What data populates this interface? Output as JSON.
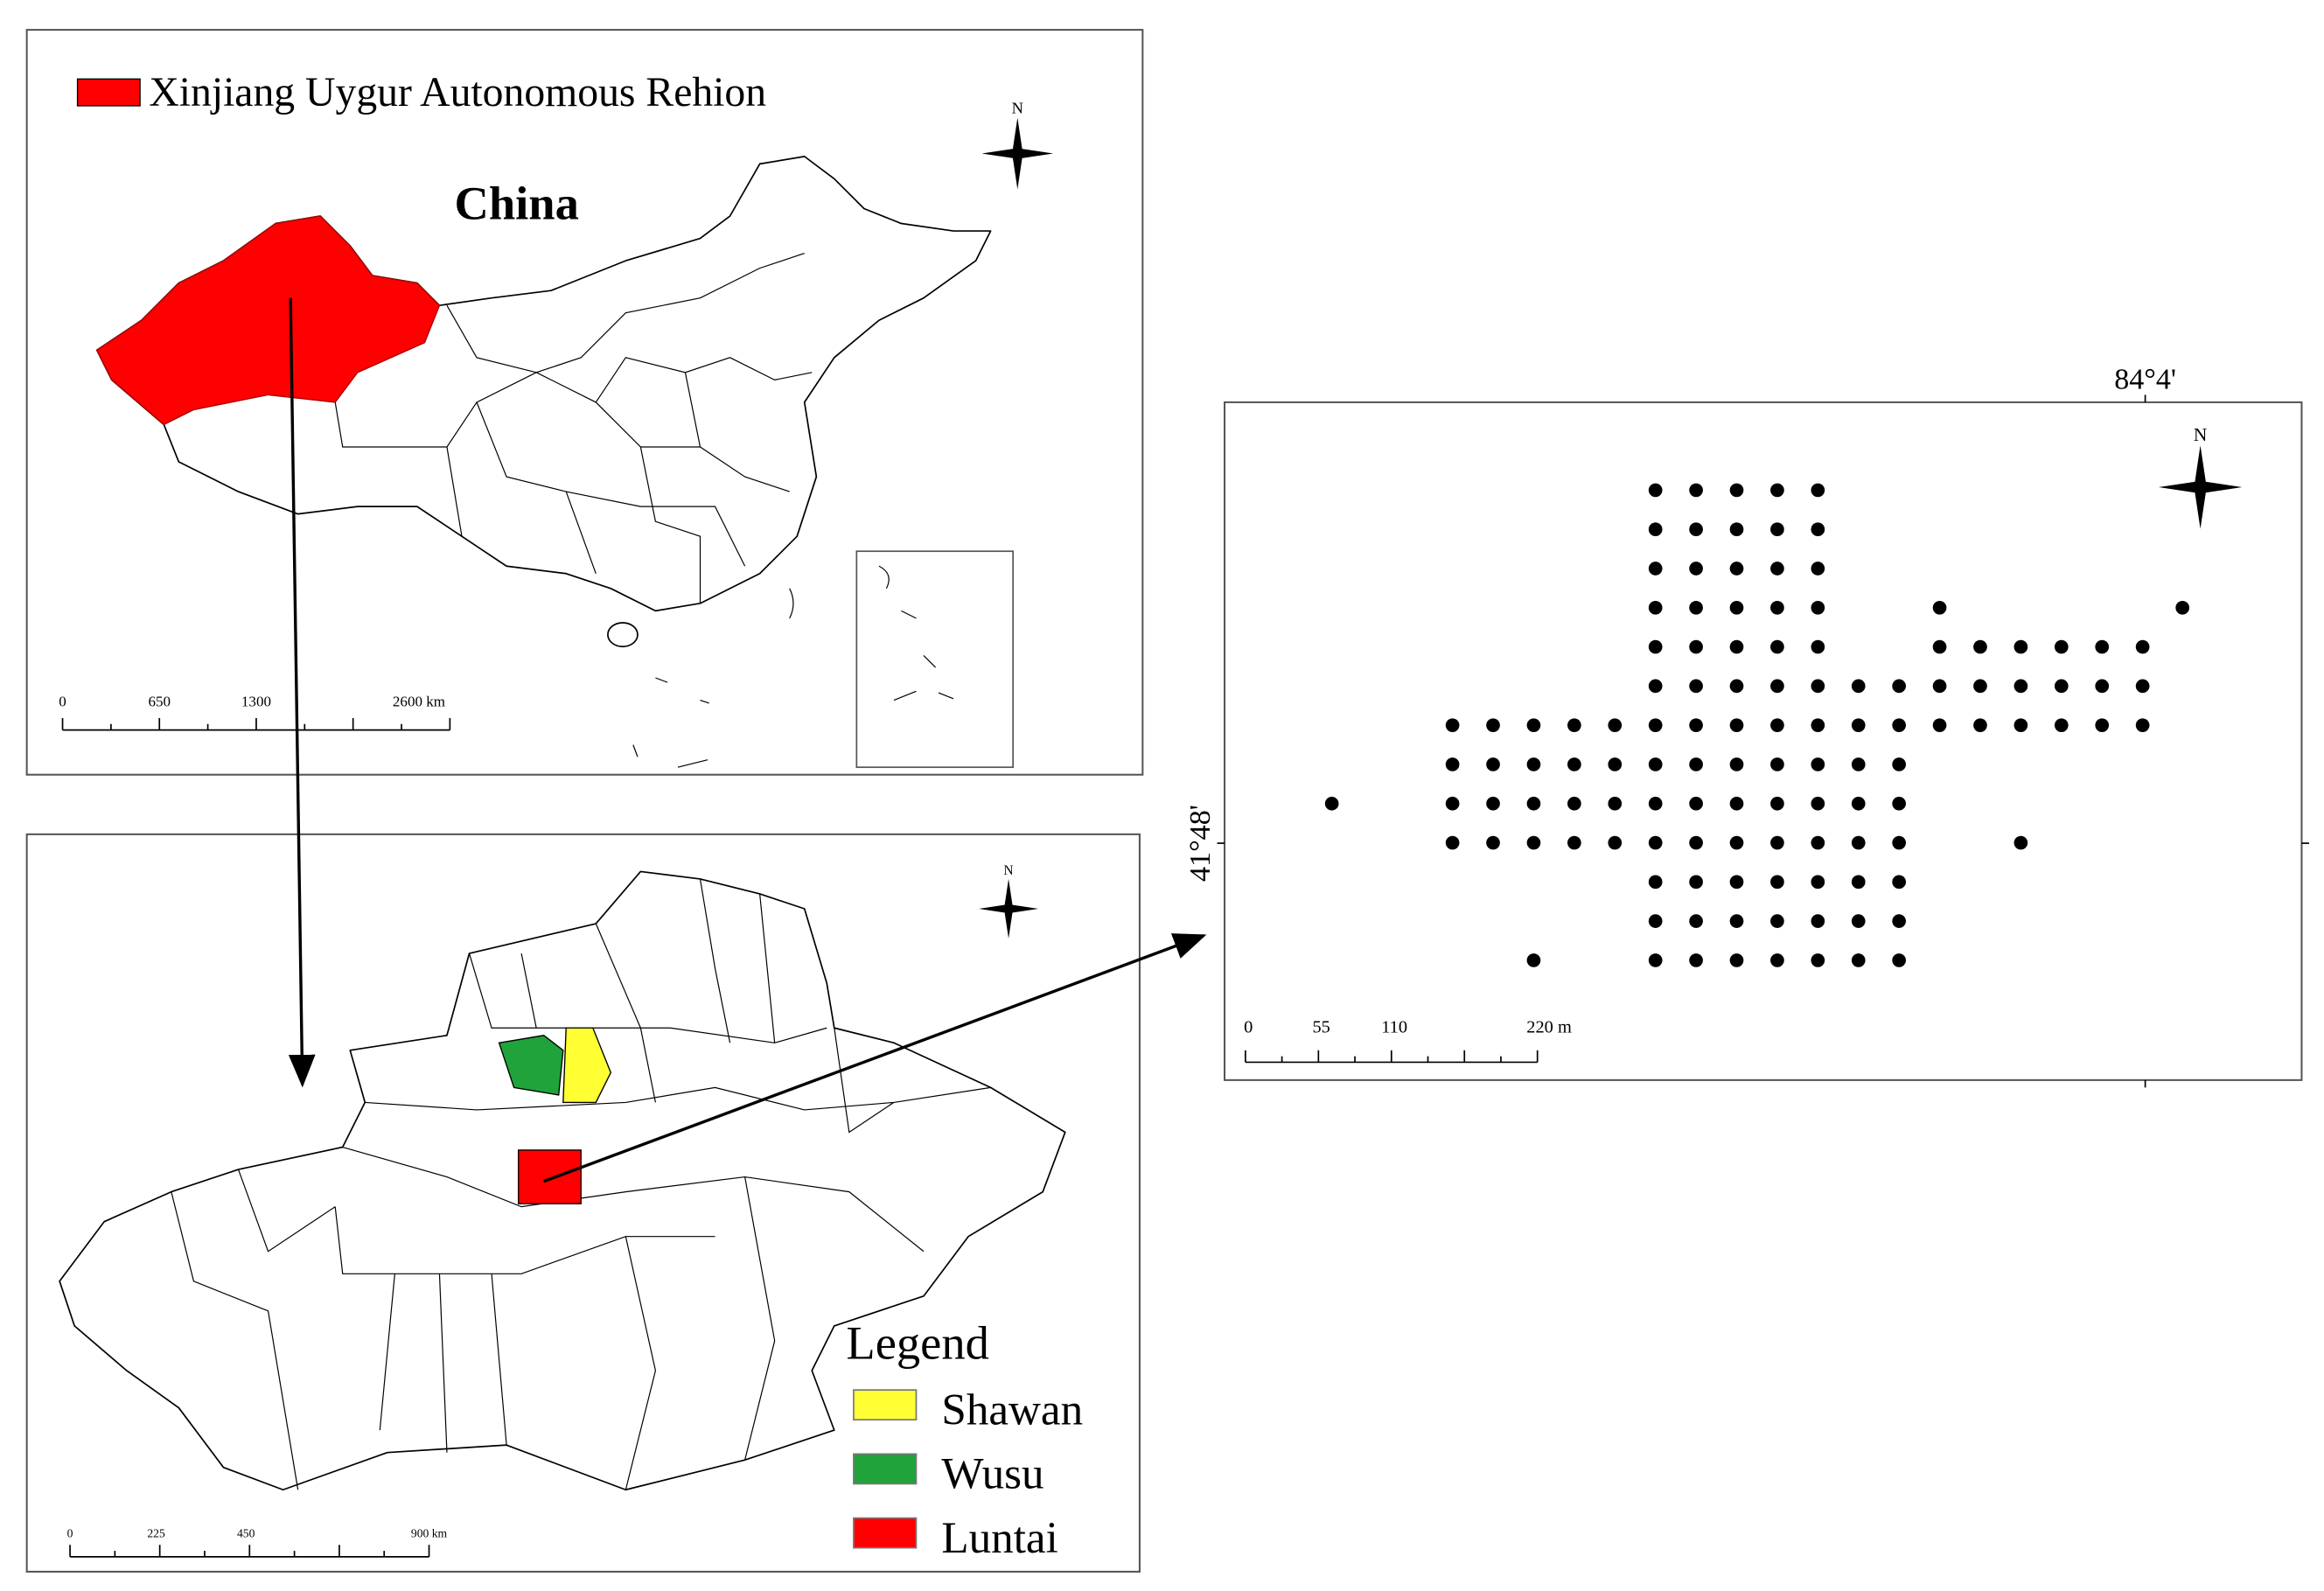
{
  "top_map": {
    "legend_label": "Xinjiang Uygur Autonomous Rehion",
    "country_label": "China",
    "north": "N",
    "scale": [
      "0",
      "650",
      "1300",
      "2600 km"
    ]
  },
  "bottom_map": {
    "north": "N",
    "legend": {
      "title": "Legend",
      "items": [
        "Shawan",
        "Wusu",
        "Luntai"
      ]
    },
    "scale": [
      "0",
      "225",
      "450",
      "900 km"
    ]
  },
  "site_map": {
    "north": "N",
    "longitude": "84°4'",
    "latitude": "41°48'",
    "scale": [
      "0",
      "55",
      "110",
      "220 m"
    ]
  }
}
